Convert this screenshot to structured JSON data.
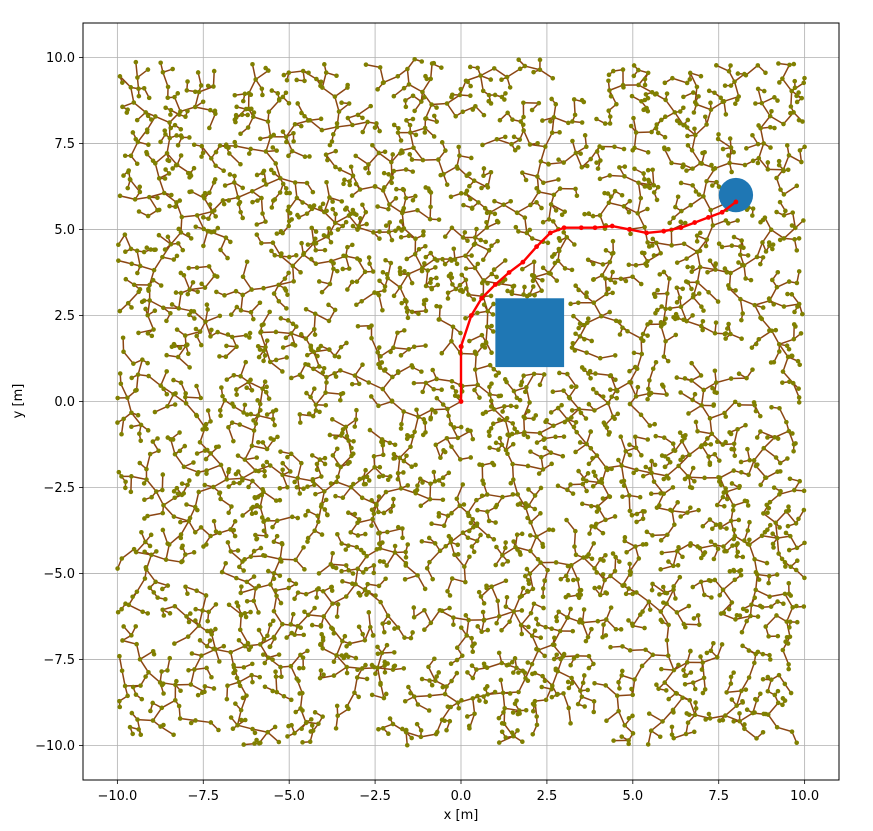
{
  "chart_data": {
    "type": "scatter",
    "title": "",
    "xlabel": "x [m]",
    "ylabel": "y [m]",
    "xlim": [
      -11,
      11
    ],
    "ylim": [
      -11,
      11
    ],
    "grid": true,
    "xticks": [
      -10.0,
      -7.5,
      -5.0,
      -2.5,
      0.0,
      2.5,
      5.0,
      7.5,
      10.0
    ],
    "yticks": [
      -10.0,
      -7.5,
      -5.0,
      -2.5,
      0.0,
      2.5,
      5.0,
      7.5,
      10.0
    ],
    "xtick_labels": [
      "−10.0",
      "−7.5",
      "−5.0",
      "−2.5",
      "0.0",
      "2.5",
      "5.0",
      "7.5",
      "10.0"
    ],
    "ytick_labels": [
      "−10.0",
      "−7.5",
      "−5.0",
      "−2.5",
      "0.0",
      "2.5",
      "5.0",
      "7.5",
      "10.0"
    ],
    "tree": {
      "root": [
        0,
        0
      ],
      "bounds": [
        -10,
        10
      ],
      "node_color": "#808000",
      "edge_color": "#8b4513"
    },
    "obstacles": [
      {
        "shape": "rectangle",
        "x": [
          1.0,
          3.0
        ],
        "y": [
          1.0,
          3.0
        ],
        "color": "#1f77b4"
      }
    ],
    "goal": {
      "shape": "circle",
      "center": [
        8.0,
        6.0
      ],
      "radius": 0.5,
      "color": "#1f77b4"
    },
    "path": {
      "color": "#ff0000",
      "points": [
        [
          0.0,
          0.0
        ],
        [
          0.0,
          1.6
        ],
        [
          0.3,
          2.5
        ],
        [
          0.6,
          3.0
        ],
        [
          1.0,
          3.4
        ],
        [
          1.4,
          3.75
        ],
        [
          1.8,
          4.05
        ],
        [
          2.2,
          4.5
        ],
        [
          2.6,
          4.9
        ],
        [
          3.0,
          5.05
        ],
        [
          3.5,
          5.05
        ],
        [
          3.9,
          5.05
        ],
        [
          4.4,
          5.1
        ],
        [
          4.9,
          5.0
        ],
        [
          5.4,
          4.9
        ],
        [
          5.9,
          4.95
        ],
        [
          6.4,
          5.05
        ],
        [
          6.8,
          5.2
        ],
        [
          7.2,
          5.35
        ],
        [
          7.6,
          5.5
        ],
        [
          8.0,
          5.8
        ]
      ]
    }
  }
}
